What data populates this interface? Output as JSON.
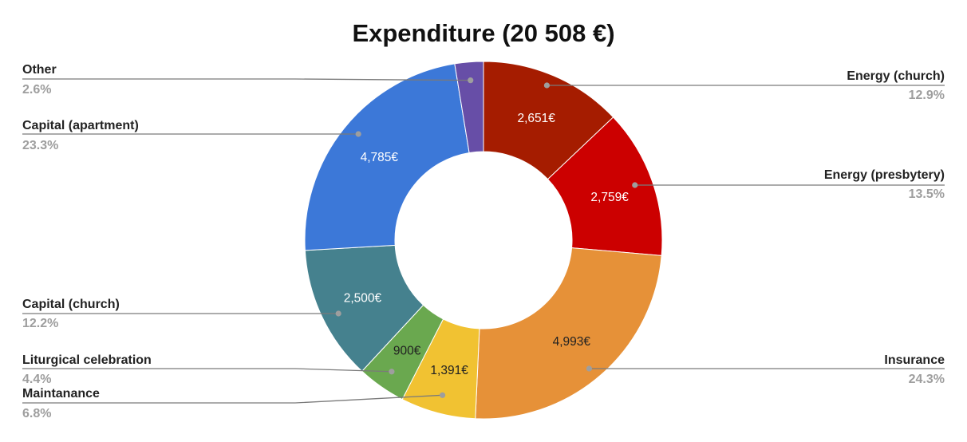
{
  "chart_data": {
    "type": "pie",
    "variant": "donut",
    "title": "Expenditure (20 508 €)",
    "legend": "callout labels on left and right",
    "slices": [
      {
        "name": "Energy (church)",
        "value": 2651,
        "value_label": "2,651€",
        "percent_label": "12.9%",
        "color": "#a51c00",
        "text_color": "#ffffff"
      },
      {
        "name": "Energy (presbytery)",
        "value": 2759,
        "value_label": "2,759€",
        "percent_label": "13.5%",
        "color": "#cc0000",
        "text_color": "#ffffff"
      },
      {
        "name": "Insurance",
        "value": 4993,
        "value_label": "4,993€",
        "percent_label": "24.3%",
        "color": "#e69138",
        "text_color": "#222222"
      },
      {
        "name": "Maintanance",
        "value": 1391,
        "value_label": "1,391€",
        "percent_label": "6.8%",
        "color": "#f1c232",
        "text_color": "#222222"
      },
      {
        "name": "Liturgical celebration",
        "value": 900,
        "value_label": "900€",
        "percent_label": "4.4%",
        "color": "#6aa84f",
        "text_color": "#222222"
      },
      {
        "name": "Capital (church)",
        "value": 2500,
        "value_label": "2,500€",
        "percent_label": "12.2%",
        "color": "#45818e",
        "text_color": "#ffffff"
      },
      {
        "name": "Capital (apartment)",
        "value": 4785,
        "value_label": "4,785€",
        "percent_label": "23.3%",
        "color": "#3c78d8",
        "text_color": "#ffffff"
      },
      {
        "name": "Other",
        "value": 529,
        "value_label": "",
        "percent_label": "2.6%",
        "color": "#674ea7",
        "text_color": "#ffffff"
      }
    ]
  }
}
